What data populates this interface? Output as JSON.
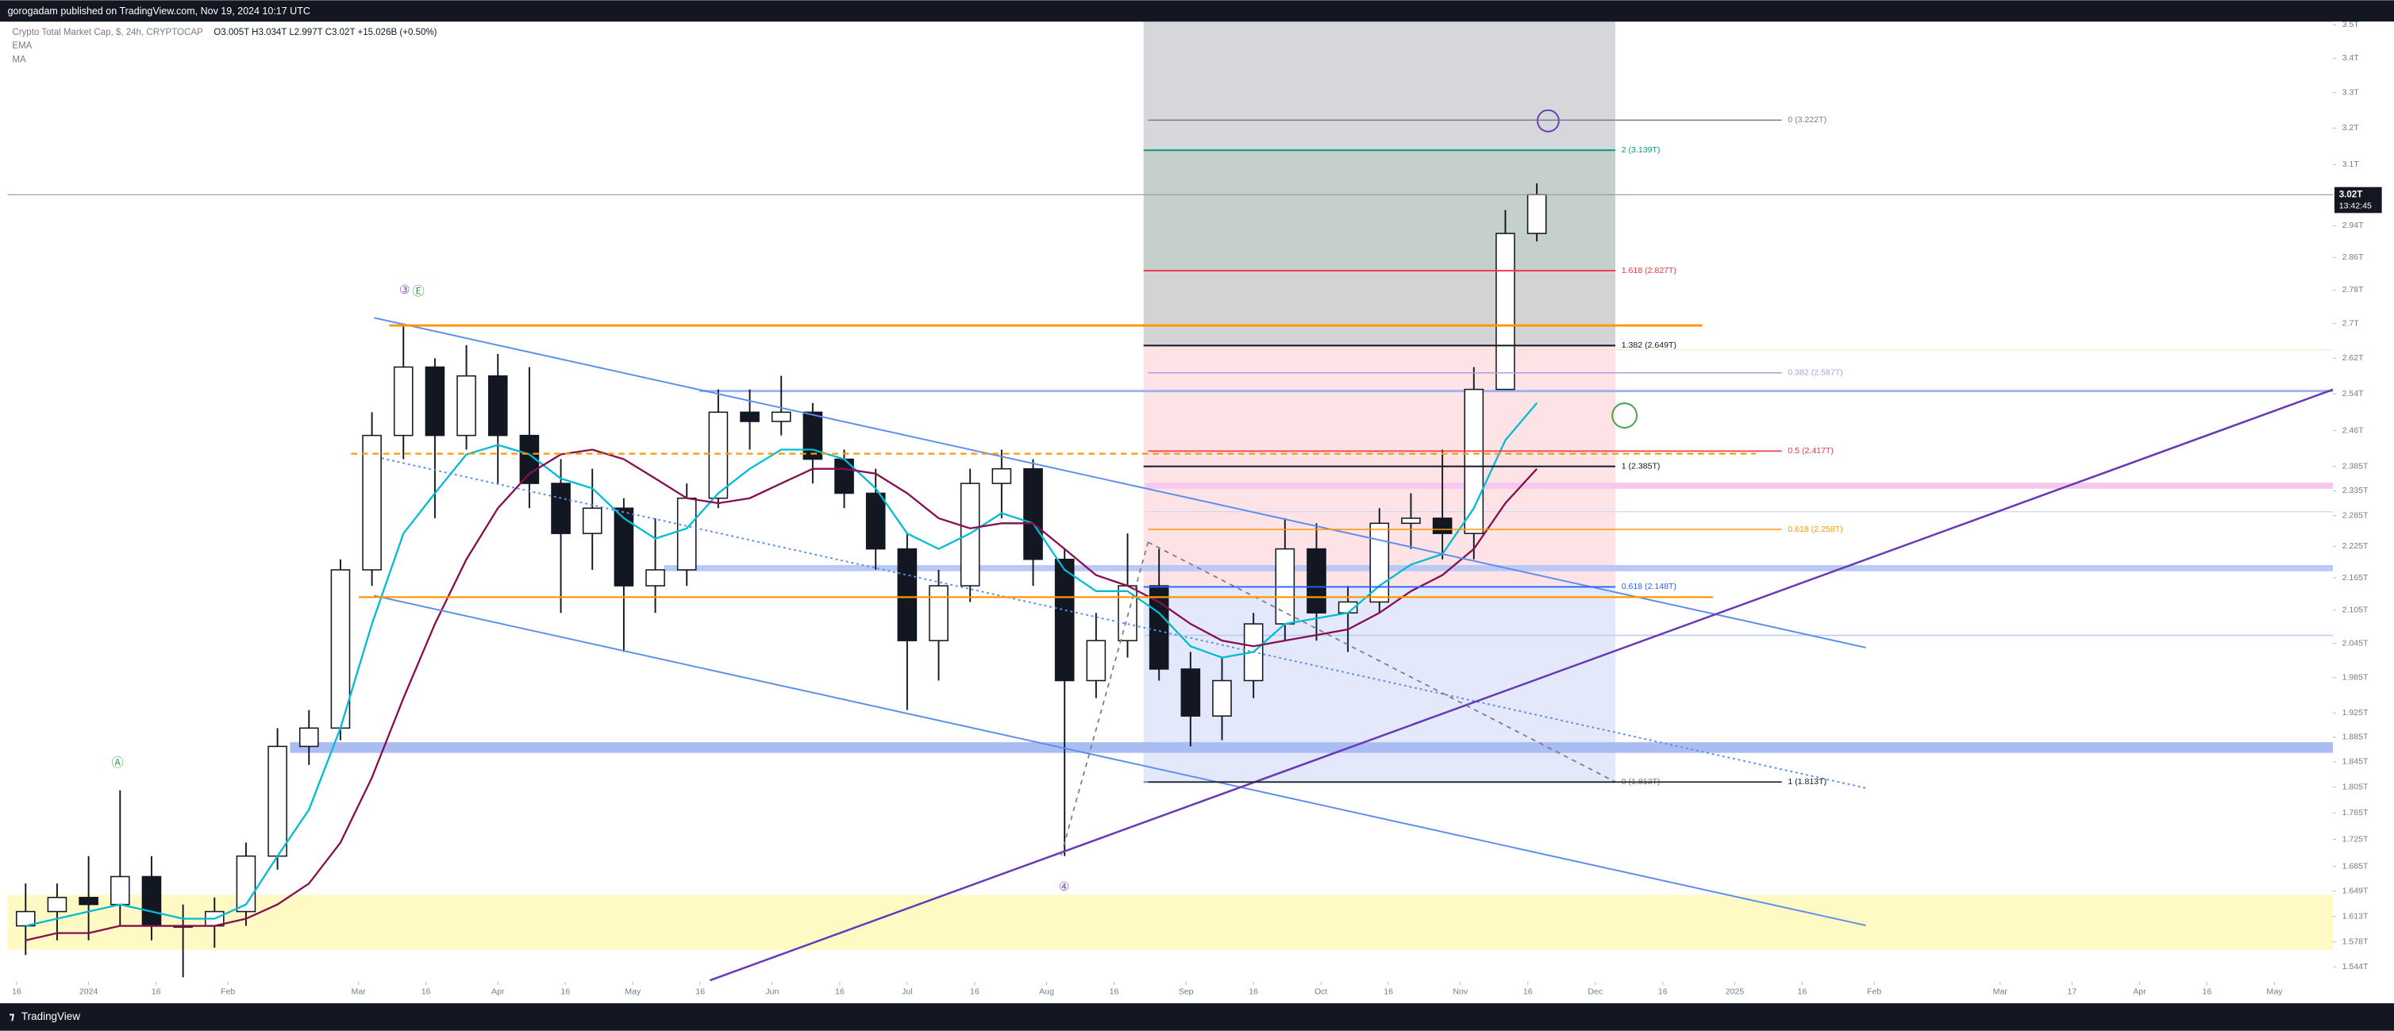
{
  "header": {
    "publisher": "gorogadam published on TradingView.com, Nov 19, 2024 10:17 UTC"
  },
  "footer": {
    "brand": "TradingView"
  },
  "chart_data": {
    "type": "candlestick",
    "title": "Crypto Total Market Cap, $, 24h, CRYPTOCAP",
    "ohlc_text": "O3.005T H3.034T L2.997T C3.02T +15.026B (+0.50%)",
    "log_scale": true,
    "up_color": "#ffffff",
    "down_color": "#131722",
    "xlim": [
      "2023-12-14",
      "2025-05-14"
    ],
    "ylim": [
      1.524,
      3.51
    ],
    "x": [
      "2023-12-18",
      "2023-12-25",
      "2024-01-01",
      "2024-01-08",
      "2024-01-15",
      "2024-01-22",
      "2024-01-29",
      "2024-02-05",
      "2024-02-12",
      "2024-02-19",
      "2024-02-26",
      "2024-03-04",
      "2024-03-11",
      "2024-03-18",
      "2024-03-25",
      "2024-04-01",
      "2024-04-08",
      "2024-04-15",
      "2024-04-22",
      "2024-04-29",
      "2024-05-06",
      "2024-05-13",
      "2024-05-20",
      "2024-05-27",
      "2024-06-03",
      "2024-06-10",
      "2024-06-17",
      "2024-06-24",
      "2024-07-01",
      "2024-07-08",
      "2024-07-15",
      "2024-07-22",
      "2024-07-29",
      "2024-08-05",
      "2024-08-12",
      "2024-08-19",
      "2024-08-26",
      "2024-09-02",
      "2024-09-09",
      "2024-09-16",
      "2024-09-23",
      "2024-09-30",
      "2024-10-07",
      "2024-10-14",
      "2024-10-21",
      "2024-10-28",
      "2024-11-04",
      "2024-11-11",
      "2024-11-18"
    ],
    "open": [
      1.6,
      1.62,
      1.64,
      1.63,
      1.67,
      1.6,
      1.6,
      1.62,
      1.7,
      1.87,
      1.9,
      2.18,
      2.45,
      2.6,
      2.45,
      2.58,
      2.45,
      2.35,
      2.25,
      2.3,
      2.15,
      2.18,
      2.32,
      2.5,
      2.48,
      2.5,
      2.4,
      2.33,
      2.22,
      2.05,
      2.15,
      2.35,
      2.38,
      2.2,
      1.98,
      2.05,
      2.15,
      2.0,
      1.92,
      1.98,
      2.08,
      2.22,
      2.1,
      2.12,
      2.27,
      2.28,
      2.25,
      2.55,
      2.92
    ],
    "high": [
      1.66,
      1.66,
      1.7,
      1.8,
      1.7,
      1.63,
      1.64,
      1.72,
      1.9,
      1.93,
      2.2,
      2.5,
      2.7,
      2.62,
      2.65,
      2.63,
      2.6,
      2.4,
      2.38,
      2.32,
      2.28,
      2.35,
      2.55,
      2.55,
      2.58,
      2.52,
      2.42,
      2.38,
      2.25,
      2.18,
      2.38,
      2.42,
      2.4,
      2.22,
      2.1,
      2.25,
      2.22,
      2.03,
      2.02,
      2.1,
      2.28,
      2.27,
      2.15,
      2.3,
      2.33,
      2.42,
      2.6,
      2.98,
      3.05
    ],
    "low": [
      1.56,
      1.58,
      1.58,
      1.6,
      1.58,
      1.53,
      1.57,
      1.6,
      1.68,
      1.84,
      1.88,
      2.15,
      2.4,
      2.28,
      2.42,
      2.35,
      2.3,
      2.1,
      2.18,
      2.03,
      2.1,
      2.15,
      2.3,
      2.42,
      2.45,
      2.35,
      2.3,
      2.18,
      1.93,
      1.98,
      2.12,
      2.28,
      2.15,
      1.7,
      1.95,
      2.02,
      1.98,
      1.87,
      1.88,
      1.95,
      2.05,
      2.05,
      2.03,
      2.1,
      2.22,
      2.2,
      2.2,
      2.55,
      2.9
    ],
    "close": [
      1.62,
      1.64,
      1.63,
      1.67,
      1.6,
      1.6,
      1.62,
      1.7,
      1.87,
      1.9,
      2.18,
      2.45,
      2.6,
      2.45,
      2.58,
      2.45,
      2.35,
      2.25,
      2.3,
      2.15,
      2.18,
      2.32,
      2.5,
      2.48,
      2.5,
      2.4,
      2.33,
      2.22,
      2.05,
      2.15,
      2.35,
      2.38,
      2.2,
      1.98,
      2.05,
      2.15,
      2.0,
      1.92,
      1.98,
      2.08,
      2.22,
      2.1,
      2.12,
      2.27,
      2.28,
      2.25,
      2.55,
      2.92,
      3.02
    ],
    "series": [
      {
        "name": "EMA",
        "color": "#00bcd4",
        "values": [
          1.6,
          1.61,
          1.62,
          1.63,
          1.62,
          1.61,
          1.61,
          1.63,
          1.7,
          1.77,
          1.9,
          2.08,
          2.25,
          2.33,
          2.41,
          2.43,
          2.41,
          2.36,
          2.34,
          2.28,
          2.24,
          2.26,
          2.33,
          2.38,
          2.42,
          2.42,
          2.4,
          2.34,
          2.25,
          2.22,
          2.25,
          2.29,
          2.27,
          2.18,
          2.14,
          2.14,
          2.1,
          2.04,
          2.02,
          2.03,
          2.08,
          2.09,
          2.1,
          2.15,
          2.19,
          2.21,
          2.3,
          2.44,
          2.52
        ]
      },
      {
        "name": "MA",
        "color": "#880e4f",
        "values": [
          1.58,
          1.59,
          1.59,
          1.6,
          1.6,
          1.6,
          1.6,
          1.61,
          1.63,
          1.66,
          1.72,
          1.82,
          1.95,
          2.08,
          2.2,
          2.3,
          2.37,
          2.41,
          2.42,
          2.4,
          2.36,
          2.32,
          2.31,
          2.32,
          2.35,
          2.38,
          2.38,
          2.37,
          2.33,
          2.28,
          2.26,
          2.27,
          2.27,
          2.22,
          2.17,
          2.15,
          2.12,
          2.08,
          2.05,
          2.04,
          2.05,
          2.06,
          2.07,
          2.1,
          2.14,
          2.17,
          2.22,
          2.31,
          2.38
        ]
      }
    ],
    "last_price": {
      "value": 3.02,
      "label": "3.02T"
    },
    "countdown": "13:42:45",
    "yticks": [
      {
        "value": 3.5,
        "label": "3.5T"
      },
      {
        "value": 3.4,
        "label": "3.4T"
      },
      {
        "value": 3.3,
        "label": "3.3T"
      },
      {
        "value": 3.2,
        "label": "3.2T"
      },
      {
        "value": 3.1,
        "label": "3.1T"
      },
      {
        "value": 2.94,
        "label": "2.94T"
      },
      {
        "value": 2.86,
        "label": "2.86T"
      },
      {
        "value": 2.78,
        "label": "2.78T"
      },
      {
        "value": 2.7,
        "label": "2.7T"
      },
      {
        "value": 2.62,
        "label": "2.62T"
      },
      {
        "value": 2.54,
        "label": "2.54T"
      },
      {
        "value": 2.46,
        "label": "2.46T"
      },
      {
        "value": 2.385,
        "label": "2.385T"
      },
      {
        "value": 2.335,
        "label": "2.335T"
      },
      {
        "value": 2.285,
        "label": "2.285T"
      },
      {
        "value": 2.225,
        "label": "2.225T"
      },
      {
        "value": 2.165,
        "label": "2.165T"
      },
      {
        "value": 2.105,
        "label": "2.105T"
      },
      {
        "value": 2.045,
        "label": "2.045T"
      },
      {
        "value": 1.985,
        "label": "1.985T"
      },
      {
        "value": 1.925,
        "label": "1.925T"
      },
      {
        "value": 1.885,
        "label": "1.885T"
      },
      {
        "value": 1.845,
        "label": "1.845T"
      },
      {
        "value": 1.805,
        "label": "1.805T"
      },
      {
        "value": 1.765,
        "label": "1.765T"
      },
      {
        "value": 1.725,
        "label": "1.725T"
      },
      {
        "value": 1.685,
        "label": "1.685T"
      },
      {
        "value": 1.649,
        "label": "1.649T"
      },
      {
        "value": 1.613,
        "label": "1.613T"
      },
      {
        "value": 1.578,
        "label": "1.578T"
      },
      {
        "value": 1.544,
        "label": "1.544T"
      }
    ],
    "xticks": [
      {
        "value": "2023-12-16",
        "label": "16"
      },
      {
        "value": "2024-01-01",
        "label": "2024"
      },
      {
        "value": "2024-01-16",
        "label": "16"
      },
      {
        "value": "2024-02-01",
        "label": "Feb"
      },
      {
        "value": "2024-03-01",
        "label": "Mar"
      },
      {
        "value": "2024-03-16",
        "label": "16"
      },
      {
        "value": "2024-04-01",
        "label": "Apr"
      },
      {
        "value": "2024-04-16",
        "label": "16"
      },
      {
        "value": "2024-05-01",
        "label": "May"
      },
      {
        "value": "2024-05-16",
        "label": "16"
      },
      {
        "value": "2024-06-01",
        "label": "Jun"
      },
      {
        "value": "2024-06-16",
        "label": "16"
      },
      {
        "value": "2024-07-01",
        "label": "Jul"
      },
      {
        "value": "2024-07-16",
        "label": "16"
      },
      {
        "value": "2024-08-01",
        "label": "Aug"
      },
      {
        "value": "2024-08-16",
        "label": "16"
      },
      {
        "value": "2024-09-01",
        "label": "Sep"
      },
      {
        "value": "2024-09-16",
        "label": "16"
      },
      {
        "value": "2024-10-01",
        "label": "Oct"
      },
      {
        "value": "2024-10-16",
        "label": "16"
      },
      {
        "value": "2024-11-01",
        "label": "Nov"
      },
      {
        "value": "2024-11-16",
        "label": "16"
      },
      {
        "value": "2024-12-01",
        "label": "Dec"
      },
      {
        "value": "2024-12-16",
        "label": "16"
      },
      {
        "value": "2025-01-01",
        "label": "2025"
      },
      {
        "value": "2025-01-16",
        "label": "16"
      },
      {
        "value": "2025-02-01",
        "label": "Feb"
      },
      {
        "value": "2025-03-01",
        "label": "Mar"
      },
      {
        "value": "2025-03-17",
        "label": "17"
      },
      {
        "value": "2025-04-01",
        "label": "Apr"
      },
      {
        "value": "2025-04-16",
        "label": "16"
      },
      {
        "value": "2025-05-01",
        "label": "May"
      }
    ],
    "fib_extension": [
      {
        "label": "2 (3.139T)",
        "value": 3.139,
        "color": "#089981"
      },
      {
        "label": "1.618 (2.827T)",
        "value": 2.827,
        "color": "#f23645"
      },
      {
        "label": "1.382 (2.649T)",
        "value": 2.649,
        "color": "#131722"
      },
      {
        "label": "1 (2.385T)",
        "value": 2.385,
        "color": "#131722"
      },
      {
        "label": "0.618 (2.148T)",
        "value": 2.148,
        "color": "#2962ff"
      },
      {
        "label": "0 (1.813T)",
        "value": 1.813,
        "color": "#787b86"
      }
    ],
    "fib_retracement": [
      {
        "label": "0 (3.222T)",
        "value": 3.222,
        "color": "#787b86"
      },
      {
        "label": "0.382 (2.587T)",
        "value": 2.587,
        "color": "#b39ddb"
      },
      {
        "label": "0.5 (2.417T)",
        "value": 2.417,
        "color": "#f23645"
      },
      {
        "label": "0.618 (2.258T)",
        "value": 2.258,
        "color": "#ff9800"
      },
      {
        "label": "1 (1.813T)",
        "value": 1.813,
        "color": "#131722"
      }
    ],
    "annotations": [
      {
        "text": "③",
        "color": "#7e57c2"
      },
      {
        "text": "Ⓔ",
        "color": "#43a047"
      },
      {
        "text": "Ⓐ",
        "color": "#43a047"
      },
      {
        "text": "④",
        "color": "#7e57c2"
      }
    ]
  }
}
